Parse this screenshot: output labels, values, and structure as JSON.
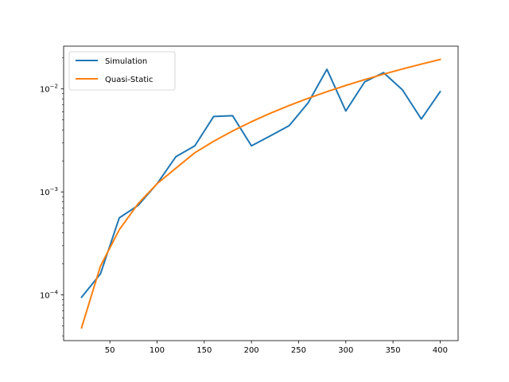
{
  "chart_data": {
    "type": "line",
    "title": "",
    "xlabel": "",
    "ylabel": "",
    "yscale": "log",
    "xlim": [
      1,
      419
    ],
    "ylim": [
      3.6e-05,
      0.026
    ],
    "grid": false,
    "legend_position": "top-left",
    "x_ticks": [
      50,
      100,
      150,
      200,
      250,
      300,
      350,
      400
    ],
    "x_tick_labels": [
      "50",
      "100",
      "150",
      "200",
      "250",
      "300",
      "350",
      "400"
    ],
    "y_ticks": [
      0.0001,
      0.001,
      0.01
    ],
    "y_tick_labels": [
      {
        "base": "10",
        "exp": "−4"
      },
      {
        "base": "10",
        "exp": "−3"
      },
      {
        "base": "10",
        "exp": "−2"
      }
    ],
    "x": [
      20,
      40,
      60,
      80,
      100,
      120,
      140,
      160,
      180,
      200,
      220,
      240,
      260,
      280,
      300,
      320,
      340,
      360,
      380,
      400
    ],
    "series": [
      {
        "name": "Simulation",
        "color": "#1f77b4",
        "values": [
          9.5e-05,
          0.00016,
          0.00056,
          0.00074,
          0.0012,
          0.0022,
          0.0028,
          0.0054,
          0.0055,
          0.0028,
          0.0035,
          0.0044,
          0.0073,
          0.0155,
          0.0061,
          0.0117,
          0.0144,
          0.0098,
          0.0051,
          0.0094
        ]
      },
      {
        "name": "Quasi-Static",
        "color": "#ff7f0e",
        "values": [
          4.8e-05,
          0.00019,
          0.00043,
          0.00077,
          0.0012,
          0.0017,
          0.0024,
          0.0031,
          0.0039,
          0.0048,
          0.0058,
          0.0069,
          0.0081,
          0.0094,
          0.0108,
          0.0123,
          0.0139,
          0.0156,
          0.0174,
          0.0193
        ]
      }
    ]
  }
}
